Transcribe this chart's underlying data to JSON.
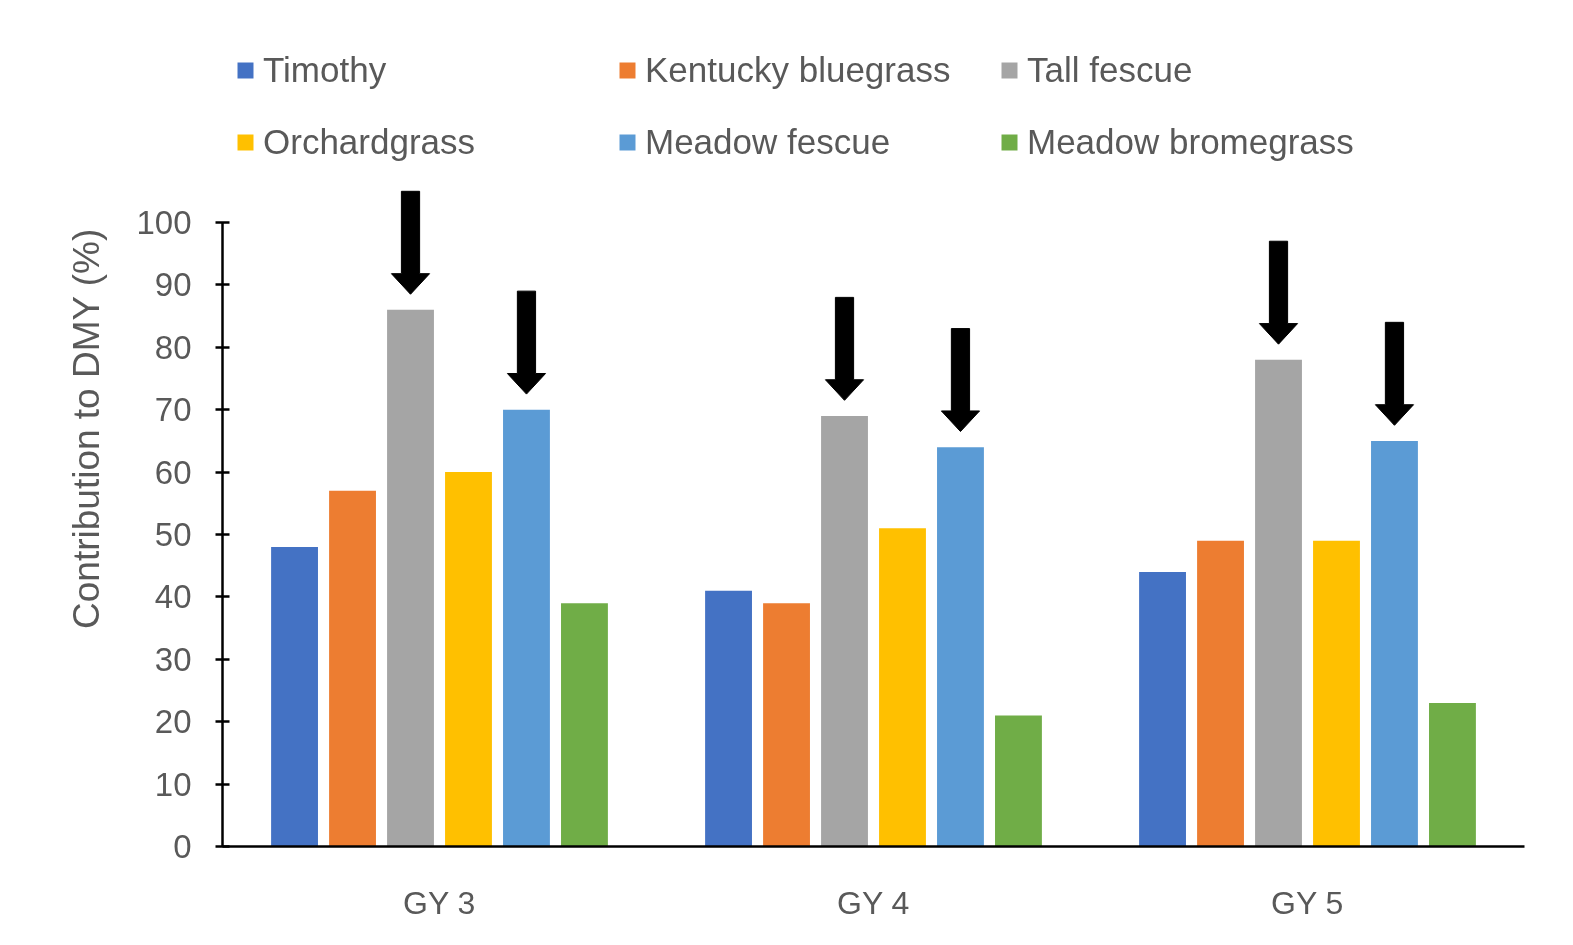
{
  "chart_data": {
    "type": "bar",
    "ylabel": "Contribution to DMY (%)",
    "categories": [
      "GY 3",
      "GY 4",
      "GY 5"
    ],
    "series": [
      {
        "name": "Timothy",
        "color": "#4472c4",
        "values": [
          48,
          41,
          44
        ]
      },
      {
        "name": "Kentucky bluegrass",
        "color": "#ed7d31",
        "values": [
          57,
          39,
          49
        ]
      },
      {
        "name": "Tall fescue",
        "color": "#a5a5a5",
        "values": [
          86,
          69,
          78
        ]
      },
      {
        "name": "Orchardgrass",
        "color": "#ffc000",
        "values": [
          60,
          51,
          49
        ]
      },
      {
        "name": "Meadow fescue",
        "color": "#5b9bd5",
        "values": [
          70,
          64,
          65
        ]
      },
      {
        "name": "Meadow bromegrass",
        "color": "#70ad47",
        "values": [
          39,
          21,
          23
        ]
      }
    ],
    "ylim": [
      0,
      100
    ],
    "yticks": [
      0,
      10,
      20,
      30,
      40,
      50,
      60,
      70,
      80,
      90,
      100
    ],
    "legend": "top",
    "grid": false
  }
}
